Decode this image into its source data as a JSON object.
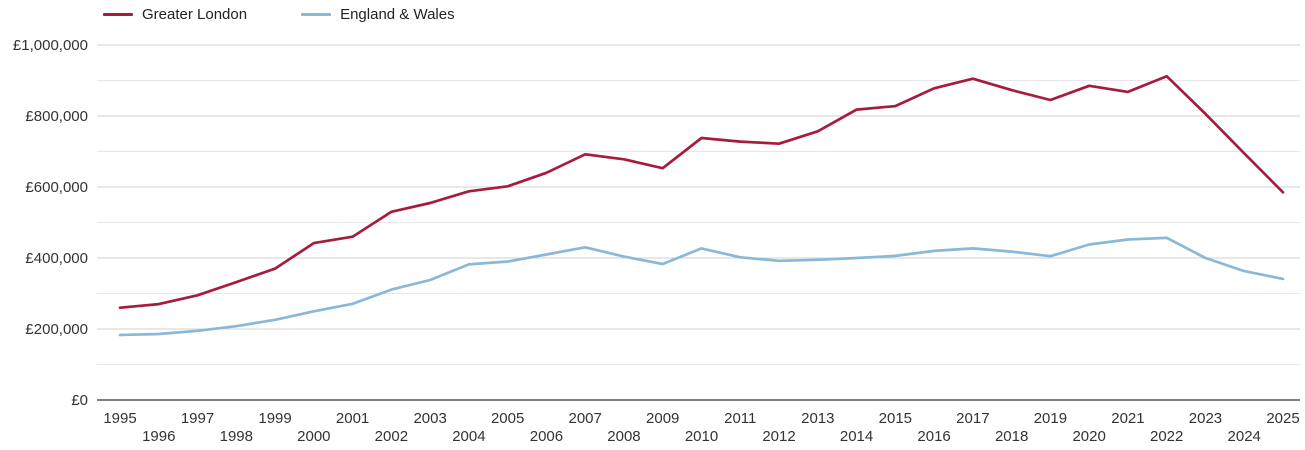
{
  "chart_data": {
    "type": "line",
    "title": "",
    "x_label": "",
    "y_label": "",
    "x": [
      1995,
      1996,
      1997,
      1998,
      1999,
      2000,
      2001,
      2002,
      2003,
      2004,
      2005,
      2006,
      2007,
      2008,
      2009,
      2010,
      2011,
      2012,
      2013,
      2014,
      2015,
      2016,
      2017,
      2018,
      2019,
      2020,
      2021,
      2022,
      2023,
      2024,
      2025
    ],
    "series": [
      {
        "name": "Greater London",
        "color": "#a61c3c",
        "values": [
          260000,
          270000,
          295000,
          332000,
          370000,
          442000,
          460000,
          530000,
          555000,
          588000,
          602000,
          640000,
          692000,
          678000,
          653000,
          738000,
          728000,
          722000,
          757000,
          818000,
          828000,
          878000,
          905000,
          873000,
          845000,
          885000,
          868000,
          912000,
          806000,
          695000,
          585000
        ]
      },
      {
        "name": "England & Wales",
        "color": "#8ab8d8",
        "values": [
          183000,
          186000,
          195000,
          208000,
          226000,
          250000,
          271000,
          311000,
          338000,
          382000,
          390000,
          410000,
          430000,
          404000,
          383000,
          427000,
          402000,
          392000,
          395000,
          400000,
          406000,
          420000,
          427000,
          418000,
          405000,
          438000,
          452000,
          457000,
          400000,
          363000,
          341000
        ]
      }
    ],
    "ylim": [
      0,
      1000000
    ],
    "y_major_step": 200000,
    "y_minor_step": 100000,
    "y_tick_labels": [
      "£0",
      "£200,000",
      "£400,000",
      "£600,000",
      "£800,000",
      "£1,000,000"
    ],
    "y_tick_prefix": "£",
    "grid": "horizontal-only",
    "legend_position": "top-left",
    "x_tick_rows": "odd-years-top-even-years-bottom"
  },
  "colors": {
    "major_gridline": "#d2d2d2",
    "minor_gridline": "#e7e7e7",
    "axis_line": "#333333",
    "tick_text": "#333333"
  }
}
